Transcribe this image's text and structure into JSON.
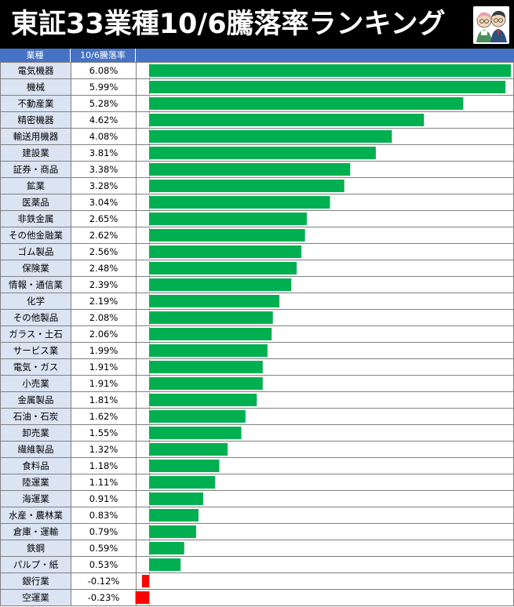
{
  "title": "東証33業種10/6騰落率ランキング",
  "header": {
    "col_category": "業種",
    "col_value": "10/6騰落率"
  },
  "colors": {
    "positive_bar": "#00b050",
    "negative_bar": "#ff0000",
    "header_bg": "#4472c4",
    "category_bg": "#dbe4f3"
  },
  "icons": {
    "avatar": "two-characters-logo"
  },
  "chart_data": {
    "type": "bar",
    "orientation": "horizontal",
    "title": "東証33業種10/6騰落率ランキング",
    "categories": [
      "電気機器",
      "機械",
      "不動産業",
      "精密機器",
      "輸送用機器",
      "建設業",
      "証券・商品",
      "鉱業",
      "医薬品",
      "非鉄金属",
      "その他金融業",
      "ゴム製品",
      "保険業",
      "情報・通信業",
      "化学",
      "その他製品",
      "ガラス・土石",
      "サービス業",
      "電気・ガス",
      "小売業",
      "金属製品",
      "石油・石炭",
      "卸売業",
      "繊維製品",
      "食料品",
      "陸運業",
      "海運業",
      "水産・農林業",
      "倉庫・運輸",
      "鉄鋼",
      "パルプ・紙",
      "銀行業",
      "空運業"
    ],
    "values": [
      6.08,
      5.99,
      5.28,
      4.62,
      4.08,
      3.81,
      3.38,
      3.28,
      3.04,
      2.65,
      2.62,
      2.56,
      2.48,
      2.39,
      2.19,
      2.08,
      2.06,
      1.99,
      1.91,
      1.91,
      1.81,
      1.62,
      1.55,
      1.32,
      1.18,
      1.11,
      0.91,
      0.83,
      0.79,
      0.59,
      0.53,
      -0.12,
      -0.23
    ],
    "labels": [
      "6.08%",
      "5.99%",
      "5.28%",
      "4.62%",
      "4.08%",
      "3.81%",
      "3.38%",
      "3.28%",
      "3.04%",
      "2.65%",
      "2.62%",
      "2.56%",
      "2.48%",
      "2.39%",
      "2.19%",
      "2.08%",
      "2.06%",
      "1.99%",
      "1.91%",
      "1.91%",
      "1.81%",
      "1.62%",
      "1.55%",
      "1.32%",
      "1.18%",
      "1.11%",
      "0.91%",
      "0.83%",
      "0.79%",
      "0.59%",
      "0.53%",
      "-0.12%",
      "-0.23%"
    ],
    "unit": "%"
  }
}
